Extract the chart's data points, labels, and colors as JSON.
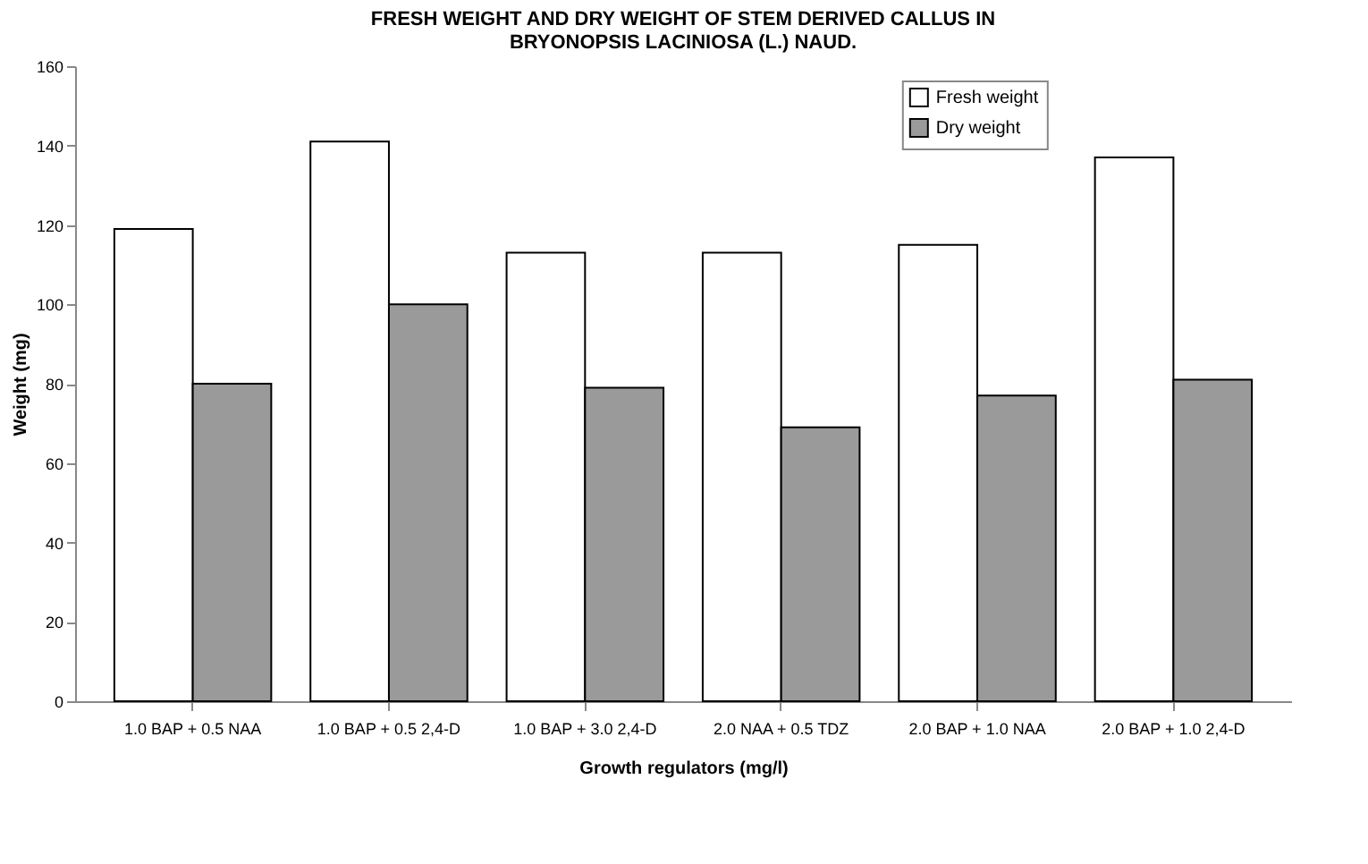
{
  "chart_data": {
    "type": "bar",
    "title": [
      "FRESH WEIGHT AND DRY WEIGHT OF STEM DERIVED CALLUS IN",
      "BRYONOPSIS LACINIOSA (L.) NAUD."
    ],
    "xlabel": "Growth regulators (mg/l)",
    "ylabel": "Weight (mg)",
    "categories": [
      "1.0 BAP + 0.5 NAA",
      "1.0 BAP + 0.5 2,4-D",
      "1.0 BAP + 3.0 2,4-D",
      "2.0 NAA + 0.5 TDZ",
      "2.0 BAP + 1.0 NAA",
      "2.0 BAP + 1.0 2,4-D"
    ],
    "series": [
      {
        "name": "Fresh weight",
        "color": "#ffffff",
        "values": [
          119,
          141,
          113,
          113,
          115,
          137
        ]
      },
      {
        "name": "Dry weight",
        "color": "#9a9a9a",
        "values": [
          80,
          100,
          79,
          69,
          77,
          81
        ]
      }
    ],
    "ylim": [
      0,
      160
    ],
    "yticks": [
      0,
      20,
      40,
      60,
      80,
      100,
      120,
      140,
      160
    ],
    "grid": false,
    "legend": "top right"
  }
}
